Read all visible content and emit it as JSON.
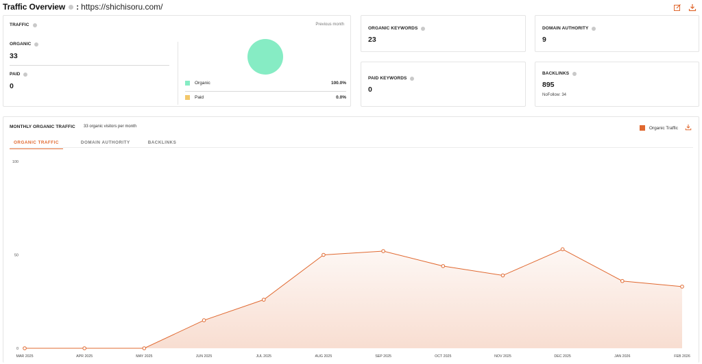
{
  "header": {
    "title": "Traffic Overview",
    "colon": ":",
    "url": "https://shichisoru.com/"
  },
  "traffic": {
    "label": "TRAFFIC",
    "period": "Previous month",
    "organic_label": "ORGANIC",
    "organic_value": "33",
    "paid_label": "PAID",
    "paid_value": "0",
    "legend": [
      {
        "name": "Organic",
        "pct": "100.0%",
        "color": "#86ecc4"
      },
      {
        "name": "Paid",
        "pct": "0.0%",
        "color": "#f3c86b"
      }
    ]
  },
  "organic_keywords": {
    "label": "ORGANIC KEYWORDS",
    "value": "23"
  },
  "domain_authority": {
    "label": "DOMAIN AUTHORITY",
    "value": "9"
  },
  "paid_keywords": {
    "label": "PAID KEYWORDS",
    "value": "0"
  },
  "backlinks": {
    "label": "BACKLINKS",
    "value": "895",
    "nofollow": "NoFollow: 34"
  },
  "monthly": {
    "title": "MONTHLY ORGANIC TRAFFIC",
    "subtitle": "33 organic visitors per month",
    "tabs": [
      "ORGANIC TRAFFIC",
      "DOMAIN AUTHORITY",
      "BACKLINKS"
    ],
    "active_tab": 0,
    "legend_label": "Organic Traffic"
  },
  "colors": {
    "accent": "#e0682f",
    "organic": "#86ecc4",
    "paid": "#f3c86b"
  },
  "icons": [
    "edit-icon",
    "download-icon",
    "info-icon"
  ],
  "chart_data": {
    "type": "area",
    "categories": [
      "MAR 2025",
      "APR 2025",
      "MAY 2025",
      "JUN 2025",
      "JUL 2025",
      "AUG 2025",
      "SEP 2025",
      "OCT 2025",
      "NOV 2025",
      "DEC 2025",
      "JAN 2026",
      "FEB 2026"
    ],
    "series": [
      {
        "name": "Organic Traffic",
        "values": [
          0,
          0,
          0,
          15,
          26,
          50,
          52,
          44,
          39,
          53,
          36,
          33
        ]
      }
    ],
    "yticks": [
      "0",
      "50",
      "100"
    ],
    "ylim": [
      0,
      100
    ],
    "grid": false,
    "legend": "top-right"
  }
}
